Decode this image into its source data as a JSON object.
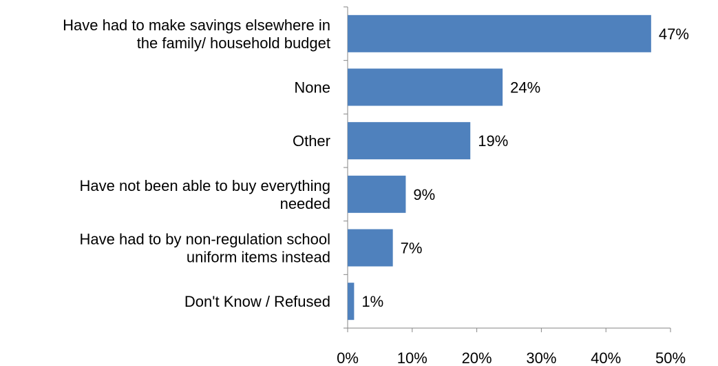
{
  "chart_data": {
    "type": "bar",
    "orientation": "horizontal",
    "categories": [
      [
        "Have had to make savings elsewhere in",
        "the family/ household budget"
      ],
      [
        "None"
      ],
      [
        "Other"
      ],
      [
        "Have not been able to buy everything",
        "needed"
      ],
      [
        "Have had to by non-regulation school",
        "uniform items instead"
      ],
      [
        "Don't Know / Refused"
      ]
    ],
    "values": [
      47,
      24,
      19,
      9,
      7,
      1
    ],
    "value_labels": [
      "47%",
      "24%",
      "19%",
      "9%",
      "7%",
      "1%"
    ],
    "xlim": [
      0,
      50
    ],
    "xticks": [
      0,
      10,
      20,
      30,
      40,
      50
    ],
    "xtick_labels": [
      "0%",
      "10%",
      "20%",
      "30%",
      "40%",
      "50%"
    ],
    "grid": false,
    "legend": "none",
    "bar_color": "#4F81BD",
    "axis_color": "#868686"
  }
}
